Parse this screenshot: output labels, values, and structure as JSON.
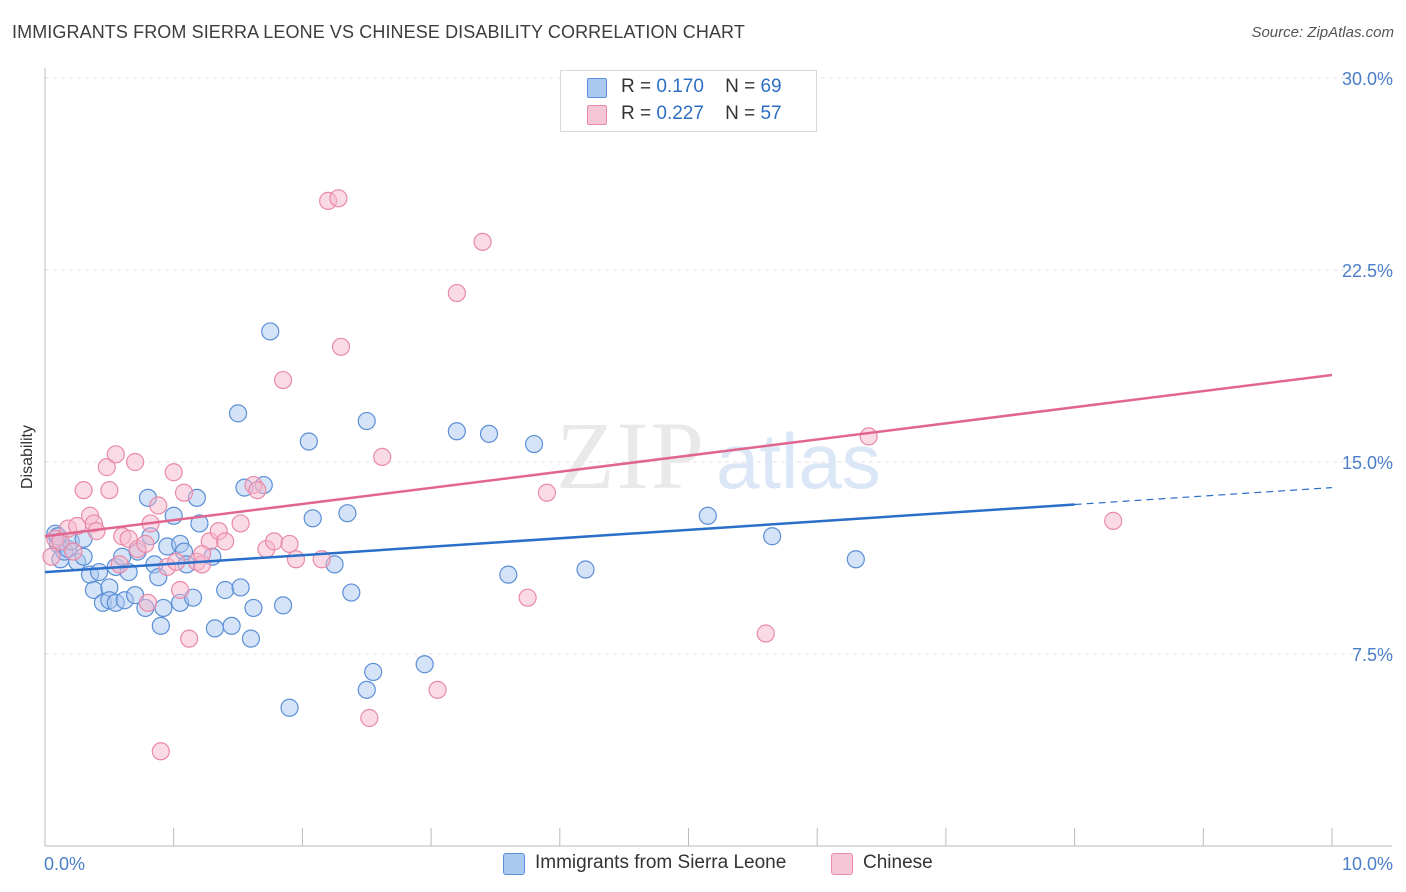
{
  "header": {
    "title": "IMMIGRANTS FROM SIERRA LEONE VS CHINESE DISABILITY CORRELATION CHART",
    "source": "Source: ZipAtlas.com"
  },
  "watermark": {
    "zip": "ZIP",
    "atlas": "atlas"
  },
  "legend_top": {
    "rows": [
      {
        "r_label": "R =",
        "r_value": "0.170",
        "n_label": "N =",
        "n_value": "69"
      },
      {
        "r_label": "R =",
        "r_value": "0.227",
        "n_label": "N =",
        "n_value": "57"
      }
    ]
  },
  "legend_bottom": {
    "items": [
      "Immigrants from Sierra Leone",
      "Chinese"
    ]
  },
  "colors": {
    "blue_fill": "#aac8f0",
    "blue_stroke": "#5b8fd6",
    "blue_line": "#2a6fc9",
    "pink_fill": "#f5b8cc",
    "pink_stroke": "#e98aa8",
    "pink_line": "#e06690",
    "tick_label": "#4a7ec9",
    "grid": "#e2e2e2"
  },
  "chart_data": {
    "type": "scatter",
    "title": "IMMIGRANTS FROM SIERRA LEONE VS CHINESE DISABILITY CORRELATION CHART",
    "xlabel": "",
    "ylabel": "Disability",
    "xlim": [
      0,
      10
    ],
    "ylim": [
      0,
      30
    ],
    "x_ticks": [
      0,
      10
    ],
    "x_tick_labels": [
      "0.0%",
      "10.0%"
    ],
    "y_ticks": [
      7.5,
      15,
      22.5,
      30
    ],
    "y_tick_labels": [
      "7.5%",
      "15.0%",
      "22.5%",
      "30.0%"
    ],
    "grid": true,
    "legend_position": "top-center",
    "series": [
      {
        "name": "Immigrants from Sierra Leone",
        "R": 0.17,
        "N": 69,
        "trend": {
          "x": [
            0,
            8.0,
            10.0
          ],
          "y": [
            10.7,
            13.4,
            14.0
          ],
          "solid_until": 8.0
        },
        "points": [
          [
            0.08,
            12.2
          ],
          [
            0.1,
            11.8
          ],
          [
            0.12,
            11.2
          ],
          [
            0.15,
            11.5
          ],
          [
            0.18,
            11.6
          ],
          [
            0.2,
            11.9
          ],
          [
            0.25,
            11.1
          ],
          [
            0.3,
            11.3
          ],
          [
            0.3,
            12.0
          ],
          [
            0.35,
            10.6
          ],
          [
            0.38,
            10.0
          ],
          [
            0.42,
            10.7
          ],
          [
            0.45,
            9.5
          ],
          [
            0.5,
            10.1
          ],
          [
            0.5,
            9.6
          ],
          [
            0.55,
            9.5
          ],
          [
            0.55,
            10.9
          ],
          [
            0.6,
            11.3
          ],
          [
            0.62,
            9.6
          ],
          [
            0.65,
            10.7
          ],
          [
            0.7,
            9.8
          ],
          [
            0.72,
            11.5
          ],
          [
            0.78,
            9.3
          ],
          [
            0.8,
            13.6
          ],
          [
            0.82,
            12.1
          ],
          [
            0.85,
            11.0
          ],
          [
            0.88,
            10.5
          ],
          [
            0.9,
            8.6
          ],
          [
            0.92,
            9.3
          ],
          [
            0.95,
            11.7
          ],
          [
            1.0,
            12.9
          ],
          [
            1.05,
            9.5
          ],
          [
            1.05,
            11.8
          ],
          [
            1.08,
            11.5
          ],
          [
            1.1,
            11.0
          ],
          [
            1.15,
            9.7
          ],
          [
            1.18,
            13.6
          ],
          [
            1.2,
            12.6
          ],
          [
            1.3,
            11.3
          ],
          [
            1.32,
            8.5
          ],
          [
            1.4,
            10.0
          ],
          [
            1.45,
            8.6
          ],
          [
            1.5,
            16.9
          ],
          [
            1.52,
            10.1
          ],
          [
            1.55,
            14.0
          ],
          [
            1.6,
            8.1
          ],
          [
            1.62,
            9.3
          ],
          [
            1.7,
            14.1
          ],
          [
            1.75,
            20.1
          ],
          [
            1.85,
            9.4
          ],
          [
            1.9,
            5.4
          ],
          [
            2.05,
            15.8
          ],
          [
            2.08,
            12.8
          ],
          [
            2.25,
            11.0
          ],
          [
            2.35,
            13.0
          ],
          [
            2.38,
            9.9
          ],
          [
            2.5,
            6.1
          ],
          [
            2.5,
            16.6
          ],
          [
            2.55,
            6.8
          ],
          [
            2.95,
            7.1
          ],
          [
            3.2,
            16.2
          ],
          [
            3.45,
            16.1
          ],
          [
            3.6,
            10.6
          ],
          [
            3.8,
            15.7
          ],
          [
            4.2,
            10.8
          ],
          [
            5.15,
            12.9
          ],
          [
            5.65,
            12.1
          ],
          [
            6.3,
            11.2
          ],
          [
            0.1,
            12.1
          ]
        ]
      },
      {
        "name": "Chinese",
        "R": 0.227,
        "N": 57,
        "trend": {
          "x": [
            0,
            10.0
          ],
          "y": [
            12.1,
            18.4
          ],
          "solid_until": 10.0
        },
        "points": [
          [
            0.05,
            11.3
          ],
          [
            0.08,
            12.0
          ],
          [
            0.12,
            11.9
          ],
          [
            0.18,
            12.4
          ],
          [
            0.22,
            11.5
          ],
          [
            0.25,
            12.5
          ],
          [
            0.3,
            13.9
          ],
          [
            0.35,
            12.9
          ],
          [
            0.38,
            12.6
          ],
          [
            0.4,
            12.3
          ],
          [
            0.48,
            14.8
          ],
          [
            0.5,
            13.9
          ],
          [
            0.55,
            15.3
          ],
          [
            0.58,
            11.0
          ],
          [
            0.6,
            12.1
          ],
          [
            0.65,
            12.0
          ],
          [
            0.7,
            15.0
          ],
          [
            0.72,
            11.6
          ],
          [
            0.78,
            11.8
          ],
          [
            0.8,
            9.5
          ],
          [
            0.82,
            12.6
          ],
          [
            0.88,
            13.3
          ],
          [
            0.9,
            3.7
          ],
          [
            0.95,
            10.9
          ],
          [
            1.0,
            14.6
          ],
          [
            1.02,
            11.1
          ],
          [
            1.05,
            10.0
          ],
          [
            1.08,
            13.8
          ],
          [
            1.12,
            8.1
          ],
          [
            1.18,
            11.1
          ],
          [
            1.22,
            11.0
          ],
          [
            1.28,
            11.9
          ],
          [
            1.35,
            12.3
          ],
          [
            1.4,
            11.9
          ],
          [
            1.52,
            12.6
          ],
          [
            1.62,
            14.1
          ],
          [
            1.65,
            13.9
          ],
          [
            1.72,
            11.6
          ],
          [
            1.78,
            11.9
          ],
          [
            1.85,
            18.2
          ],
          [
            1.9,
            11.8
          ],
          [
            1.95,
            11.2
          ],
          [
            2.15,
            11.2
          ],
          [
            2.2,
            25.2
          ],
          [
            2.28,
            25.3
          ],
          [
            2.3,
            19.5
          ],
          [
            2.52,
            5.0
          ],
          [
            2.62,
            15.2
          ],
          [
            3.05,
            6.1
          ],
          [
            3.2,
            21.6
          ],
          [
            3.4,
            23.6
          ],
          [
            3.75,
            9.7
          ],
          [
            3.9,
            13.8
          ],
          [
            5.6,
            8.3
          ],
          [
            6.4,
            16.0
          ],
          [
            8.3,
            12.7
          ],
          [
            1.22,
            11.4
          ]
        ]
      }
    ]
  }
}
